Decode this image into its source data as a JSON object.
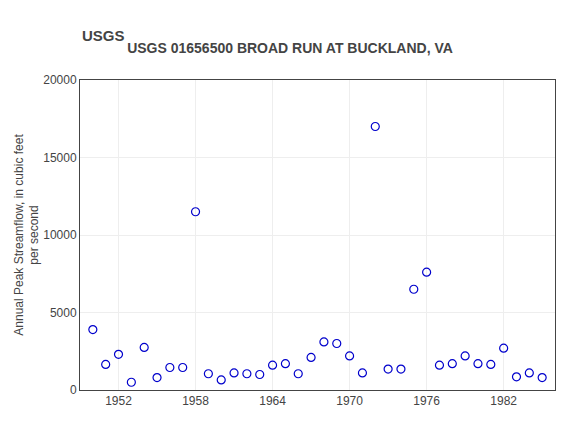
{
  "chart_data": {
    "type": "scatter",
    "title": "USGS 01656500 BROAD RUN AT BUCKLAND, VA",
    "annotations": [
      "USGS"
    ],
    "ylabel": "Annual Peak Streamflow, in cubic feet\nper second",
    "series": [
      {
        "color": "#0000CC",
        "marker": "circle-open",
        "x": [
          1950,
          1951,
          1952,
          1953,
          1954,
          1955,
          1956,
          1957,
          1958,
          1959,
          1960,
          1961,
          1962,
          1963,
          1964,
          1965,
          1966,
          1967,
          1968,
          1969,
          1970,
          1971,
          1972,
          1973,
          1974,
          1975,
          1976,
          1977,
          1978,
          1979,
          1980,
          1981,
          1982,
          1983,
          1984,
          1985
        ],
        "values": [
          3900,
          1650,
          2300,
          500,
          2750,
          800,
          1450,
          1450,
          11500,
          1050,
          650,
          1100,
          1050,
          1000,
          1600,
          1700,
          1050,
          2100,
          3100,
          3000,
          2200,
          1100,
          17000,
          1350,
          1350,
          6500,
          7600,
          1600,
          1700,
          2200,
          1700,
          1650,
          2700,
          850,
          1100,
          800
        ]
      }
    ],
    "xlim": [
      1949,
      1986
    ],
    "xticks": [
      1952,
      1958,
      1964,
      1970,
      1976,
      1982
    ],
    "ylim": [
      0,
      20000
    ],
    "yticks": [
      0,
      5000,
      10000,
      15000,
      20000
    ],
    "grid": true
  }
}
